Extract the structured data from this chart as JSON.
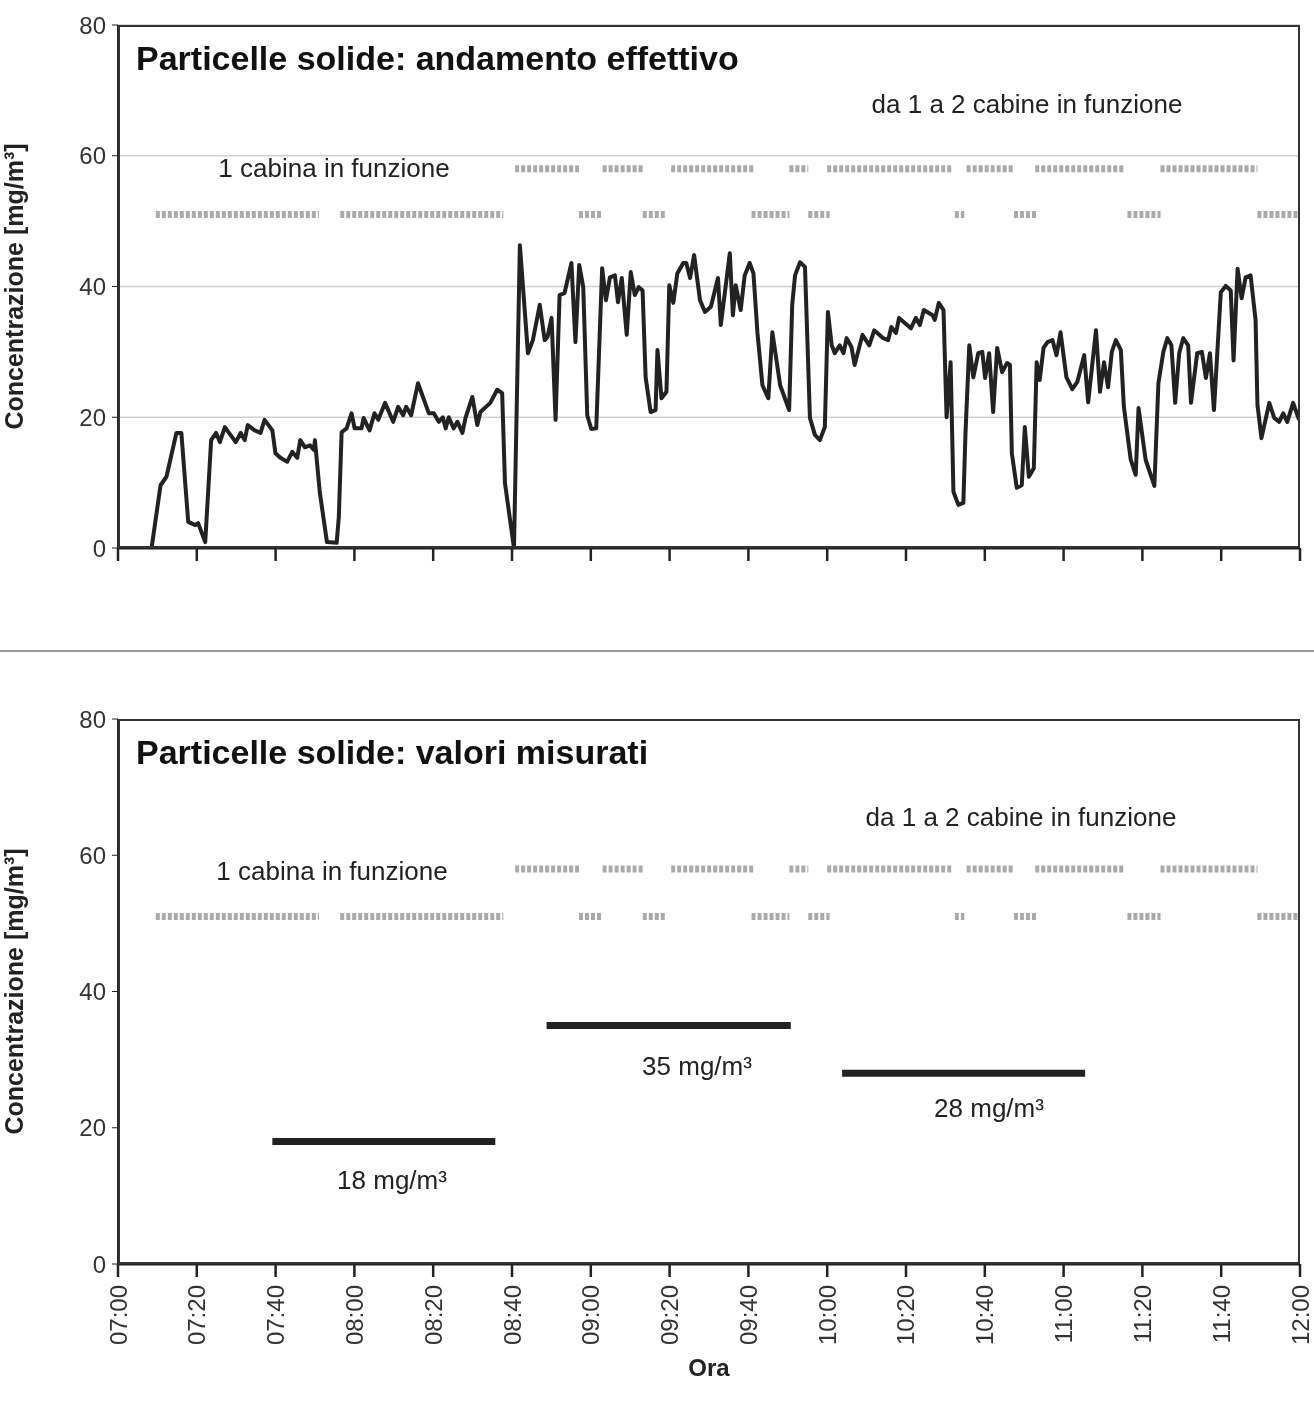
{
  "chart_data": [
    {
      "type": "line",
      "title": "Particelle solide: andamento effettivo",
      "ylabel": "Concentrazione [mg/m³]",
      "xlim": [
        7,
        12
      ],
      "xticks": [
        {
          "value": 7,
          "label": null
        },
        {
          "value": 7.3333,
          "label": null
        },
        {
          "value": 7.6667,
          "label": null
        },
        {
          "value": 8,
          "label": null
        },
        {
          "value": 8.3333,
          "label": null
        },
        {
          "value": 8.6667,
          "label": null
        },
        {
          "value": 9,
          "label": null
        },
        {
          "value": 9.3333,
          "label": null
        },
        {
          "value": 9.6667,
          "label": null
        },
        {
          "value": 10,
          "label": null
        },
        {
          "value": 10.3333,
          "label": null
        },
        {
          "value": 10.6667,
          "label": null
        },
        {
          "value": 11,
          "label": null
        },
        {
          "value": 11.3333,
          "label": null
        },
        {
          "value": 11.6667,
          "label": null
        },
        {
          "value": 12,
          "label": null
        }
      ],
      "ylim": [
        0,
        80
      ],
      "yticks": [
        0,
        20,
        40,
        60,
        80
      ],
      "grid": "y",
      "tick_labels": "y",
      "marker": "none",
      "annotations": [
        "1 cabina in funzione",
        "da 1 a 2 cabine in funzione"
      ],
      "series": [
        {
          "color": "#222222",
          "x": [
            7.0,
            7.142,
            7.18,
            7.205,
            7.247,
            7.268,
            7.297,
            7.327,
            7.339,
            7.369,
            7.394,
            7.415,
            7.431,
            7.452,
            7.498,
            7.519,
            7.536,
            7.549,
            7.578,
            7.603,
            7.62,
            7.653,
            7.666,
            7.687,
            7.716,
            7.737,
            7.758,
            7.771,
            7.791,
            7.812,
            7.829,
            7.833,
            7.854,
            7.884,
            7.925,
            7.934,
            7.946,
            7.967,
            7.988,
            8.001,
            8.03,
            8.039,
            8.064,
            8.085,
            8.101,
            8.13,
            8.164,
            8.185,
            8.206,
            8.219,
            8.24,
            8.269,
            8.315,
            8.336,
            8.357,
            8.374,
            8.386,
            8.399,
            8.42,
            8.436,
            8.457,
            8.47,
            8.499,
            8.52,
            8.533,
            8.575,
            8.604,
            8.625,
            8.637,
            8.675,
            8.7,
            8.734,
            8.755,
            8.784,
            8.805,
            8.817,
            8.834,
            8.851,
            8.868,
            8.889,
            8.918,
            8.935,
            8.951,
            8.968,
            8.985,
            9.002,
            9.023,
            9.048,
            9.064,
            9.081,
            9.102,
            9.115,
            9.131,
            9.152,
            9.169,
            9.186,
            9.203,
            9.219,
            9.232,
            9.253,
            9.274,
            9.282,
            9.299,
            9.32,
            9.332,
            9.349,
            9.366,
            9.391,
            9.404,
            9.42,
            9.437,
            9.462,
            9.483,
            9.508,
            9.538,
            9.55,
            9.588,
            9.601,
            9.613,
            9.634,
            9.651,
            9.672,
            9.688,
            9.705,
            9.726,
            9.751,
            9.768,
            9.801,
            9.839,
            9.852,
            9.864,
            9.885,
            9.906,
            9.927,
            9.948,
            9.969,
            9.99,
            10.003,
            10.019,
            10.032,
            10.053,
            10.069,
            10.082,
            10.103,
            10.116,
            10.149,
            10.178,
            10.199,
            10.237,
            10.258,
            10.271,
            10.291,
            10.304,
            10.354,
            10.375,
            10.392,
            10.409,
            10.446,
            10.455,
            10.472,
            10.492,
            10.505,
            10.522,
            10.534,
            10.555,
            10.576,
            10.585,
            10.601,
            10.618,
            10.639,
            10.656,
            10.668,
            10.685,
            10.702,
            10.719,
            10.74,
            10.761,
            10.773,
            10.781,
            10.802,
            10.823,
            10.836,
            10.853,
            10.874,
            10.886,
            10.899,
            10.915,
            10.932,
            10.953,
            10.97,
            10.987,
            11.012,
            11.037,
            11.058,
            11.087,
            11.104,
            11.137,
            11.154,
            11.171,
            11.188,
            11.204,
            11.221,
            11.242,
            11.255,
            11.284,
            11.305,
            11.317,
            11.347,
            11.384,
            11.401,
            11.422,
            11.439,
            11.456,
            11.472,
            11.489,
            11.506,
            11.527,
            11.539,
            11.565,
            11.585,
            11.602,
            11.619,
            11.636,
            11.665,
            11.686,
            11.707,
            11.719,
            11.736,
            11.753,
            11.77,
            11.791,
            11.812,
            11.82,
            11.837,
            11.87,
            11.891,
            11.912,
            11.929,
            11.946,
            11.971,
            11.996
          ],
          "values": [
            0,
            0,
            9.6,
            10.9,
            17.6,
            17.6,
            4,
            3.5,
            3.8,
            0.9,
            16.5,
            17.6,
            16.2,
            18.5,
            16.2,
            17.6,
            16.5,
            18.8,
            18,
            17.6,
            19.6,
            18,
            14.5,
            13.8,
            13.2,
            14.7,
            13.8,
            16.5,
            15.4,
            15.7,
            15,
            16.5,
            8.4,
            0.9,
            0.8,
            4.7,
            17.7,
            18.3,
            20.6,
            18.3,
            18.3,
            19.9,
            18,
            20.6,
            19.6,
            22.2,
            19.3,
            21.6,
            20.3,
            21.6,
            20.3,
            25.2,
            20.6,
            20.6,
            19.3,
            20,
            18.3,
            20,
            18.3,
            19.3,
            17.6,
            19.9,
            23.1,
            18.8,
            20.8,
            22.2,
            24.2,
            23.7,
            9.9,
            0,
            46.3,
            29.8,
            31.8,
            37.2,
            31.8,
            32.3,
            35.2,
            19.6,
            38.7,
            39,
            43.6,
            31.5,
            43.3,
            39.9,
            20.3,
            18.2,
            18.3,
            42.8,
            37.9,
            41.4,
            41.7,
            37.6,
            41.3,
            32.6,
            42.2,
            38.7,
            39.9,
            39.4,
            26.1,
            20.8,
            21.1,
            30.3,
            22.9,
            23.9,
            40.2,
            37.5,
            42,
            43.6,
            43.6,
            41.3,
            44.8,
            37.9,
            36.1,
            36.9,
            41.3,
            34.1,
            45.1,
            35.6,
            40.2,
            36.4,
            41.7,
            43.6,
            42,
            32.9,
            24.9,
            22.9,
            33,
            24.9,
            21.1,
            37.2,
            41.7,
            43.7,
            43,
            19.9,
            17.3,
            16.5,
            18.5,
            36.1,
            31,
            29.8,
            31,
            29.8,
            32.1,
            30.7,
            28,
            32.6,
            31,
            33.3,
            32.1,
            31.8,
            33.8,
            32.9,
            35.2,
            33.6,
            35.2,
            34.1,
            36.4,
            35.6,
            34.9,
            37.5,
            36.4,
            20,
            28.4,
            8.6,
            6.6,
            6.9,
            17.6,
            31,
            26.1,
            29.8,
            30,
            26,
            29.8,
            20.8,
            30.6,
            26.9,
            28.3,
            28,
            14.5,
            9.2,
            9.6,
            18.5,
            10.9,
            12.2,
            28.4,
            25.7,
            30.6,
            31.5,
            31.8,
            29.5,
            33,
            26.1,
            24.3,
            25.4,
            29.5,
            22.3,
            33.3,
            23.9,
            28.4,
            24.6,
            30,
            31.8,
            30.3,
            21.6,
            13.5,
            11.2,
            21.4,
            13.5,
            9.5,
            25.2,
            30,
            32.1,
            31,
            22.2,
            29.8,
            32.1,
            31,
            22.2,
            29.8,
            30,
            26,
            29.8,
            21.1,
            39.1,
            40.1,
            39.4,
            28.7,
            42.7,
            38.2,
            41.4,
            41.7,
            34.9,
            21.9,
            16.8,
            22.2,
            19.9,
            19.3,
            20.6,
            19.3,
            22.2,
            19.6
          ]
        },
        {
          "type": "line",
          "color": "#aaaaaa",
          "line_style": "dotted",
          "x": [
            7.16,
            7.85,
            7.9,
            7.94,
            8.63,
            8.79,
            8.95,
            9.05,
            9.14,
            9.22,
            9.32,
            9.5,
            9.68,
            9.84,
            9.88,
            9.92,
            10.01,
            10.28,
            10.54,
            10.58,
            10.68,
            10.79,
            10.89,
            11.08,
            11.27,
            11.41,
            11.6,
            11.82,
            11.99
          ],
          "values": [
            51,
            51,
            null,
            51,
            51,
            null,
            51,
            51,
            null,
            51,
            51,
            null,
            51,
            51,
            null,
            51,
            51,
            null,
            51,
            51,
            null,
            51,
            51,
            null,
            51,
            51,
            null,
            51,
            51
          ]
        },
        {
          "type": "line",
          "color": "#aaaaaa",
          "line_style": "dotted",
          "x": [
            8.68,
            8.95,
            9.0,
            9.05,
            9.22,
            9.28,
            9.34,
            9.69,
            9.76,
            9.84,
            9.92,
            9.96,
            10.0,
            10.53,
            10.56,
            10.59,
            10.79,
            10.83,
            10.88,
            11.26,
            11.33,
            11.41,
            11.82
          ],
          "values": [
            58,
            58,
            null,
            58,
            58,
            null,
            58,
            58,
            null,
            58,
            58,
            null,
            58,
            58,
            null,
            58,
            58,
            null,
            58,
            58,
            null,
            58,
            58
          ]
        }
      ]
    },
    {
      "type": "line",
      "title": "Particelle solide: valori misurati",
      "xlabel": "Ora",
      "ylabel": "Concentrazione [mg/m³]",
      "xlim": [
        7,
        12
      ],
      "xticks": [
        {
          "value": 7,
          "label": "07:00"
        },
        {
          "value": 7.3333,
          "label": "07:20"
        },
        {
          "value": 7.6667,
          "label": "07:40"
        },
        {
          "value": 8,
          "label": "08:00"
        },
        {
          "value": 8.3333,
          "label": "08:20"
        },
        {
          "value": 8.6667,
          "label": "08:40"
        },
        {
          "value": 9,
          "label": "09:00"
        },
        {
          "value": 9.3333,
          "label": "09:20"
        },
        {
          "value": 9.6667,
          "label": "09:40"
        },
        {
          "value": 10,
          "label": "10:00"
        },
        {
          "value": 10.3333,
          "label": "10:20"
        },
        {
          "value": 10.6667,
          "label": "10:40"
        },
        {
          "value": 11,
          "label": "11:00"
        },
        {
          "value": 11.3333,
          "label": "11:20"
        },
        {
          "value": 11.6667,
          "label": "11:40"
        },
        {
          "value": 12,
          "label": "12:00"
        }
      ],
      "ylim": [
        0,
        80
      ],
      "yticks": [
        0,
        20,
        40,
        60,
        80
      ],
      "marker": "none",
      "annotations": [
        "1 cabina in funzione",
        "da 1 a 2 cabine in funzione",
        "18 mg/m³",
        "35 mg/m³",
        "28 mg/m³"
      ],
      "series": [
        {
          "color": "#222222",
          "x": [
            7.653,
            8.596,
            8.7,
            8.813,
            9.846,
            9.95,
            10.063,
            11.091
          ],
          "values": [
            18,
            18,
            null,
            35,
            35,
            null,
            28,
            28
          ]
        },
        {
          "type": "line",
          "color": "#aaaaaa",
          "line_style": "dotted",
          "x": [
            7.16,
            7.85,
            7.9,
            7.94,
            8.63,
            8.79,
            8.95,
            9.05,
            9.14,
            9.22,
            9.32,
            9.5,
            9.68,
            9.84,
            9.88,
            9.92,
            10.01,
            10.28,
            10.54,
            10.58,
            10.68,
            10.79,
            10.89,
            11.08,
            11.27,
            11.41,
            11.6,
            11.82,
            11.99
          ],
          "values": [
            51,
            51,
            null,
            51,
            51,
            null,
            51,
            51,
            null,
            51,
            51,
            null,
            51,
            51,
            null,
            51,
            51,
            null,
            51,
            51,
            null,
            51,
            51,
            null,
            51,
            51,
            null,
            51,
            51
          ]
        },
        {
          "type": "line",
          "color": "#aaaaaa",
          "line_style": "dotted",
          "x": [
            8.68,
            8.95,
            9.0,
            9.05,
            9.22,
            9.28,
            9.34,
            9.69,
            9.76,
            9.84,
            9.92,
            9.96,
            10.0,
            10.53,
            10.56,
            10.59,
            10.79,
            10.83,
            10.88,
            11.26,
            11.33,
            11.41,
            11.82
          ],
          "values": [
            58,
            58,
            null,
            58,
            58,
            null,
            58,
            58,
            null,
            58,
            58,
            null,
            58,
            58,
            null,
            58,
            58,
            null,
            58,
            58,
            null,
            58,
            58
          ]
        }
      ]
    }
  ]
}
